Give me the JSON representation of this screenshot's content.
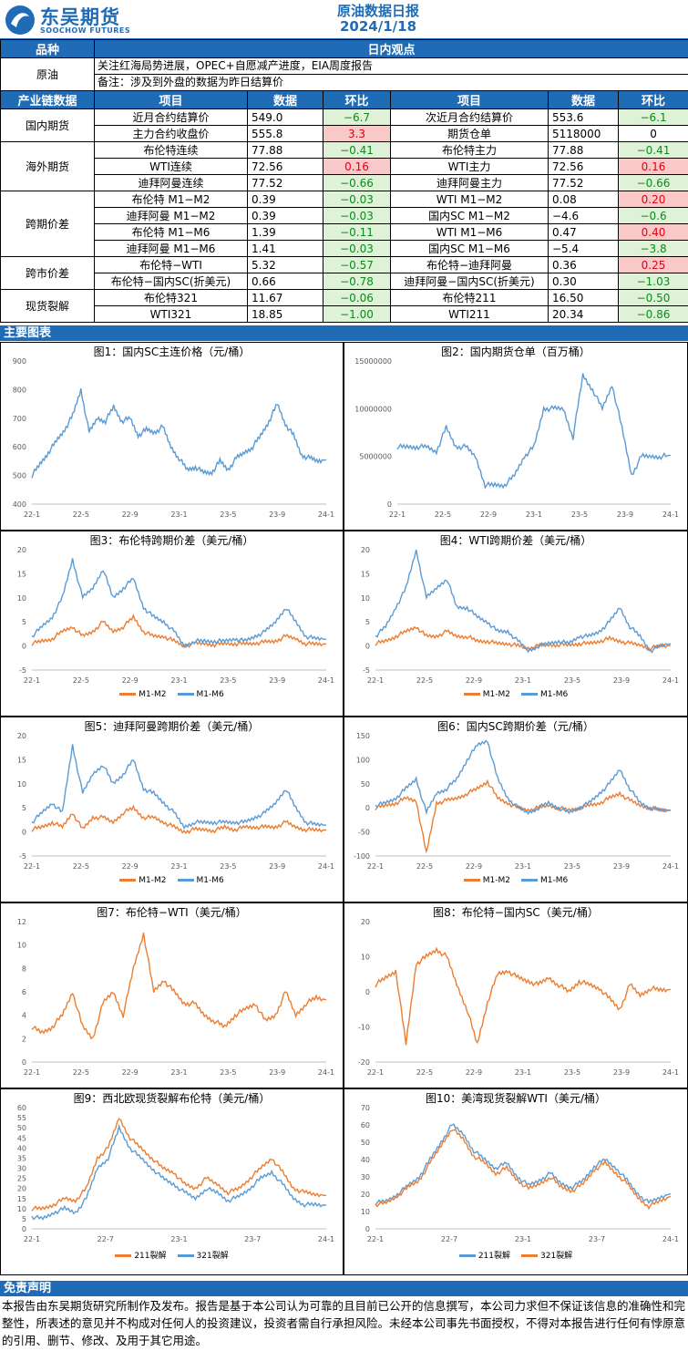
{
  "header": {
    "logo_cn": "东吴期货",
    "logo_en": "SOOCHOW FUTURES",
    "report_title": "原油数据日报",
    "report_date": "2024/1/18"
  },
  "view": {
    "col_variety": "品种",
    "col_view": "日内观点",
    "variety": "原油",
    "line1": "关注红海局势进展，OPEC+自愿减产进度，EIA周度报告",
    "line2": "备注：涉及到外盘的数据为昨日结算价"
  },
  "table_header": {
    "chain": "产业链数据",
    "item": "项目",
    "data": "数据",
    "change": "环比"
  },
  "groups": [
    {
      "name": "国内期货",
      "rows": [
        [
          {
            "label": "近月合约结算价",
            "value": "549.0",
            "chg": "−6.7",
            "dir": "dn"
          },
          {
            "label": "次近月合约结算价",
            "value": "553.6",
            "chg": "−6.1",
            "dir": "dn"
          }
        ],
        [
          {
            "label": "主力合约收盘价",
            "value": "555.8",
            "chg": "3.3",
            "dir": "up"
          },
          {
            "label": "期货仓单",
            "value": "5118000",
            "chg": "0",
            "dir": "none"
          }
        ]
      ]
    },
    {
      "name": "海外期货",
      "rows": [
        [
          {
            "label": "布伦特连续",
            "value": "77.88",
            "chg": "−0.41",
            "dir": "dn"
          },
          {
            "label": "布伦特主力",
            "value": "77.88",
            "chg": "−0.41",
            "dir": "dn"
          }
        ],
        [
          {
            "label": "WTI连续",
            "value": "72.56",
            "chg": "0.16",
            "dir": "up"
          },
          {
            "label": "WTI主力",
            "value": "72.56",
            "chg": "0.16",
            "dir": "up"
          }
        ],
        [
          {
            "label": "迪拜阿曼连续",
            "value": "77.52",
            "chg": "−0.66",
            "dir": "dn"
          },
          {
            "label": "迪拜阿曼主力",
            "value": "77.52",
            "chg": "−0.66",
            "dir": "dn"
          }
        ]
      ]
    },
    {
      "name": "跨期价差",
      "rows": [
        [
          {
            "label": "布伦特 M1−M2",
            "value": "0.39",
            "chg": "−0.03",
            "dir": "dn"
          },
          {
            "label": "WTI M1−M2",
            "value": "0.08",
            "chg": "0.20",
            "dir": "up"
          }
        ],
        [
          {
            "label": "迪拜阿曼 M1−M2",
            "value": "0.39",
            "chg": "−0.03",
            "dir": "dn"
          },
          {
            "label": "国内SC M1−M2",
            "value": "−4.6",
            "chg": "−0.6",
            "dir": "dn"
          }
        ],
        [
          {
            "label": "布伦特 M1−M6",
            "value": "1.39",
            "chg": "−0.11",
            "dir": "dn"
          },
          {
            "label": "WTI M1−M6",
            "value": "0.47",
            "chg": "0.40",
            "dir": "up"
          }
        ],
        [
          {
            "label": "迪拜阿曼 M1−M6",
            "value": "1.41",
            "chg": "−0.03",
            "dir": "dn"
          },
          {
            "label": "国内SC M1−M6",
            "value": "−5.4",
            "chg": "−3.8",
            "dir": "dn"
          }
        ]
      ]
    },
    {
      "name": "跨市价差",
      "rows": [
        [
          {
            "label": "布伦特−WTI",
            "value": "5.32",
            "chg": "−0.57",
            "dir": "dn"
          },
          {
            "label": "布伦特−迪拜阿曼",
            "value": "0.36",
            "chg": "0.25",
            "dir": "up"
          }
        ],
        [
          {
            "label": "布伦特−国内SC(折美元)",
            "value": "0.66",
            "chg": "−0.78",
            "dir": "dn"
          },
          {
            "label": "迪拜阿曼−国内SC(折美元)",
            "value": "0.30",
            "chg": "−1.03",
            "dir": "dn"
          }
        ]
      ]
    },
    {
      "name": "现货裂解",
      "rows": [
        [
          {
            "label": "布伦特321",
            "value": "11.67",
            "chg": "−0.06",
            "dir": "dn"
          },
          {
            "label": "布伦特211",
            "value": "16.50",
            "chg": "−0.50",
            "dir": "dn"
          }
        ],
        [
          {
            "label": "WTI321",
            "value": "18.85",
            "chg": "−1.00",
            "dir": "dn"
          },
          {
            "label": "WTI211",
            "value": "20.34",
            "chg": "−0.86",
            "dir": "dn"
          }
        ]
      ]
    }
  ],
  "charts_section": "主要图表",
  "colors": {
    "blue": "#5b9bd5",
    "orange": "#ed7d31",
    "brand": "#1f6bb5"
  },
  "chart_data": [
    {
      "id": "c1",
      "type": "line",
      "title": "图1：国内SC主连价格（元/桶）",
      "xticks": [
        "22-1",
        "22-5",
        "22-9",
        "23-1",
        "23-5",
        "23-9",
        "24-1"
      ],
      "ylim": [
        400,
        900
      ],
      "yticks": [
        400,
        500,
        600,
        700,
        800,
        900
      ],
      "series": [
        {
          "name": "",
          "color": "blue",
          "values": [
            500,
            540,
            580,
            620,
            660,
            710,
            800,
            650,
            700,
            690,
            740,
            690,
            700,
            640,
            660,
            650,
            670,
            600,
            560,
            520,
            530,
            510,
            510,
            550,
            520,
            560,
            580,
            600,
            640,
            690,
            750,
            680,
            640,
            570,
            560,
            550,
            555
          ]
        }
      ]
    },
    {
      "id": "c2",
      "type": "line",
      "title": "图2：国内期货仓单（百万桶）",
      "xticks": [
        "22-1",
        "22-5",
        "22-9",
        "23-1",
        "23-5",
        "23-9",
        "24-1"
      ],
      "ylim": [
        0,
        15000000
      ],
      "yticks": [
        0,
        5000000,
        10000000,
        15000000
      ],
      "series": [
        {
          "name": "",
          "color": "blue",
          "values": [
            6000000,
            6000000,
            6000000,
            6000000,
            5500000,
            8000000,
            6000000,
            6000000,
            5000000,
            2000000,
            2000000,
            2000000,
            3000000,
            5000000,
            6000000,
            10000000,
            10000000,
            10000000,
            7000000,
            13500000,
            12000000,
            10000000,
            12500000,
            8000000,
            3000000,
            5000000,
            5000000,
            5000000,
            5118000
          ]
        }
      ]
    },
    {
      "id": "c3",
      "type": "line",
      "title": "图3：布伦特跨期价差（美元/桶）",
      "xticks": [
        "22-1",
        "22-5",
        "22-9",
        "23-1",
        "23-5",
        "23-9",
        "24-1"
      ],
      "ylim": [
        -5,
        20
      ],
      "yticks": [
        -5,
        0,
        5,
        10,
        15,
        20
      ],
      "series": [
        {
          "name": "M1-M2",
          "color": "orange",
          "values": [
            0.5,
            1,
            1.5,
            3,
            4,
            2,
            3,
            5,
            3,
            4,
            6,
            3,
            2,
            2,
            1,
            0,
            0.5,
            0.5,
            0.3,
            0.5,
            0.5,
            0.4,
            0.6,
            0.8,
            1,
            2,
            1.5,
            0.5,
            0.4,
            0.39
          ]
        },
        {
          "name": "M1-M6",
          "color": "blue",
          "values": [
            2,
            4,
            6,
            10,
            18,
            10,
            12,
            16,
            10,
            12,
            14,
            8,
            6,
            5,
            3,
            0,
            1,
            1,
            1,
            1,
            1.5,
            1,
            2,
            3,
            5,
            8,
            5,
            2,
            1.5,
            1.39
          ]
        }
      ]
    },
    {
      "id": "c4",
      "type": "line",
      "title": "图4：WTI跨期价差（美元/桶）",
      "xticks": [
        "22-1",
        "22-5",
        "22-9",
        "23-1",
        "23-5",
        "23-9",
        "24-1"
      ],
      "ylim": [
        -5,
        20
      ],
      "yticks": [
        -5,
        0,
        5,
        10,
        15,
        20
      ],
      "series": [
        {
          "name": "M1-M2",
          "color": "orange",
          "values": [
            0.5,
            1,
            2,
            3,
            4,
            2,
            2,
            3,
            2,
            2,
            1,
            1,
            0.5,
            0.5,
            0,
            -0.5,
            0,
            0.2,
            0.3,
            0.2,
            0.5,
            0.5,
            1,
            1.5,
            1,
            0.5,
            0.2,
            -0.5,
            0,
            0.08
          ]
        },
        {
          "name": "M1-M6",
          "color": "blue",
          "values": [
            2,
            4,
            8,
            12,
            20,
            10,
            12,
            14,
            8,
            8,
            6,
            5,
            3,
            3,
            1,
            -1,
            0,
            0.5,
            1,
            0.5,
            2,
            2,
            3,
            5,
            8,
            4,
            2,
            -1,
            0,
            0.47
          ]
        }
      ]
    },
    {
      "id": "c5",
      "type": "line",
      "title": "图5：迪拜阿曼跨期价差（美元/桶）",
      "xticks": [
        "22-1",
        "22-5",
        "22-9",
        "23-1",
        "23-5",
        "23-9",
        "24-1"
      ],
      "ylim": [
        -5,
        20
      ],
      "yticks": [
        -5,
        0,
        5,
        10,
        15,
        20
      ],
      "series": [
        {
          "name": "M1-M2",
          "color": "orange",
          "values": [
            0.5,
            1,
            2,
            1,
            4,
            0.5,
            3,
            3,
            2,
            4,
            5,
            3,
            3,
            2,
            1,
            0,
            0.5,
            0.5,
            0.3,
            1,
            0.5,
            1,
            1,
            1,
            1,
            2,
            1,
            0.5,
            0.4,
            0.39
          ]
        },
        {
          "name": "M1-M6",
          "color": "blue",
          "values": [
            2,
            4,
            6,
            4,
            18,
            8,
            12,
            14,
            10,
            12,
            15,
            9,
            8,
            6,
            4,
            1,
            2,
            2,
            2,
            2,
            2,
            2,
            3,
            4,
            6,
            9,
            5,
            2,
            1.5,
            1.41
          ]
        }
      ]
    },
    {
      "id": "c6",
      "type": "line",
      "title": "图6：国内SC跨期价差（元/桶）",
      "xticks": [
        "22-1",
        "22-5",
        "22-9",
        "23-1",
        "23-5",
        "23-9",
        "24-1"
      ],
      "ylim": [
        -100,
        150
      ],
      "yticks": [
        -100,
        -50,
        0,
        50,
        100,
        150
      ],
      "series": [
        {
          "name": "M1-M2",
          "color": "orange",
          "values": [
            0,
            5,
            10,
            20,
            15,
            -95,
            10,
            15,
            20,
            30,
            40,
            55,
            20,
            10,
            0,
            -5,
            0,
            5,
            0,
            -5,
            0,
            5,
            10,
            20,
            30,
            15,
            5,
            0,
            -5,
            -4.6
          ]
        },
        {
          "name": "M1-M6",
          "color": "blue",
          "values": [
            5,
            10,
            20,
            40,
            60,
            -10,
            30,
            40,
            60,
            100,
            130,
            140,
            60,
            20,
            0,
            -10,
            0,
            10,
            0,
            -10,
            0,
            10,
            30,
            50,
            80,
            40,
            10,
            0,
            -5,
            -5.4
          ]
        }
      ]
    },
    {
      "id": "c7",
      "type": "line",
      "title": "图7：布伦特−WTI（美元/桶）",
      "xticks": [
        "22-1",
        "22-5",
        "22-9",
        "23-1",
        "23-5",
        "23-9",
        "24-1"
      ],
      "ylim": [
        0,
        12
      ],
      "yticks": [
        0,
        2,
        4,
        6,
        8,
        10,
        12
      ],
      "series": [
        {
          "name": "",
          "color": "orange",
          "values": [
            3,
            2.5,
            3,
            4,
            6,
            3,
            2,
            5,
            6,
            4,
            8,
            11,
            6,
            7,
            6,
            5,
            5,
            4,
            3.5,
            3,
            4,
            4.5,
            5,
            3.5,
            4,
            6,
            4,
            5,
            5.5,
            5.32
          ]
        }
      ]
    },
    {
      "id": "c8",
      "type": "line",
      "title": "图8：布伦特−国内SC（美元/桶）",
      "xticks": [
        "22-1",
        "22-5",
        "22-9",
        "23-1",
        "23-5",
        "23-9",
        "24-1"
      ],
      "ylim": [
        -20,
        20
      ],
      "yticks": [
        -20,
        -10,
        0,
        10,
        20
      ],
      "series": [
        {
          "name": "",
          "color": "orange",
          "values": [
            2,
            4,
            6,
            -15,
            8,
            10,
            12,
            10,
            2,
            -5,
            -15,
            -3,
            5,
            6,
            4,
            3,
            2,
            4,
            2,
            0,
            3,
            2,
            1,
            -2,
            -5,
            2,
            -1,
            1,
            0.5,
            0.66
          ]
        }
      ]
    },
    {
      "id": "c9",
      "type": "line",
      "title": "图9：西北欧现货裂解布伦特（美元/桶）",
      "xticks": [
        "22-1",
        "22-7",
        "23-1",
        "23-7",
        "24-1"
      ],
      "ylim": [
        0,
        60
      ],
      "yticks": [
        0,
        5,
        10,
        15,
        20,
        25,
        30,
        35,
        40,
        45,
        50,
        55,
        60
      ],
      "series": [
        {
          "name": "211裂解",
          "color": "orange",
          "values": [
            10,
            10,
            12,
            15,
            14,
            20,
            35,
            40,
            55,
            45,
            40,
            35,
            30,
            28,
            22,
            20,
            25,
            22,
            18,
            20,
            25,
            30,
            35,
            28,
            20,
            18,
            17,
            16.5
          ]
        },
        {
          "name": "321裂解",
          "color": "blue",
          "values": [
            6,
            5,
            8,
            10,
            8,
            15,
            30,
            35,
            50,
            40,
            35,
            30,
            25,
            22,
            18,
            15,
            20,
            18,
            14,
            16,
            20,
            25,
            28,
            22,
            15,
            12,
            12,
            11.67
          ]
        }
      ]
    },
    {
      "id": "c10",
      "type": "line",
      "title": "图10：美湾现货裂解WTI（美元/桶）",
      "xticks": [
        "22-1",
        "22-7",
        "23-1",
        "23-7",
        "24-1"
      ],
      "ylim": [
        0,
        70
      ],
      "yticks": [
        0,
        10,
        20,
        30,
        40,
        50,
        60,
        70
      ],
      "series": [
        {
          "name": "211裂解",
          "color": "blue",
          "values": [
            15,
            16,
            20,
            25,
            30,
            40,
            50,
            60,
            55,
            45,
            40,
            35,
            38,
            30,
            25,
            28,
            32,
            26,
            24,
            28,
            36,
            40,
            35,
            28,
            20,
            15,
            18,
            20.34
          ]
        },
        {
          "name": "321裂解",
          "color": "orange",
          "values": [
            14,
            15,
            19,
            24,
            28,
            38,
            48,
            58,
            52,
            42,
            38,
            32,
            35,
            28,
            23,
            26,
            30,
            24,
            22,
            26,
            34,
            38,
            32,
            26,
            18,
            13,
            16,
            18.85
          ]
        }
      ]
    }
  ],
  "disclaimer": {
    "title": "免责声明",
    "text": "本报告由东吴期货研究所制作及发布。报告是基于本公司认为可靠的且目前已公开的信息撰写，本公司力求但不保证该信息的准确性和完整性，所表述的意见并不构成对任何人的投资建议，投资者需自行承担风险。未经本公司事先书面授权，不得对本报告进行任何有悖原意的引用、删节、修改、及用于其它用途。"
  }
}
